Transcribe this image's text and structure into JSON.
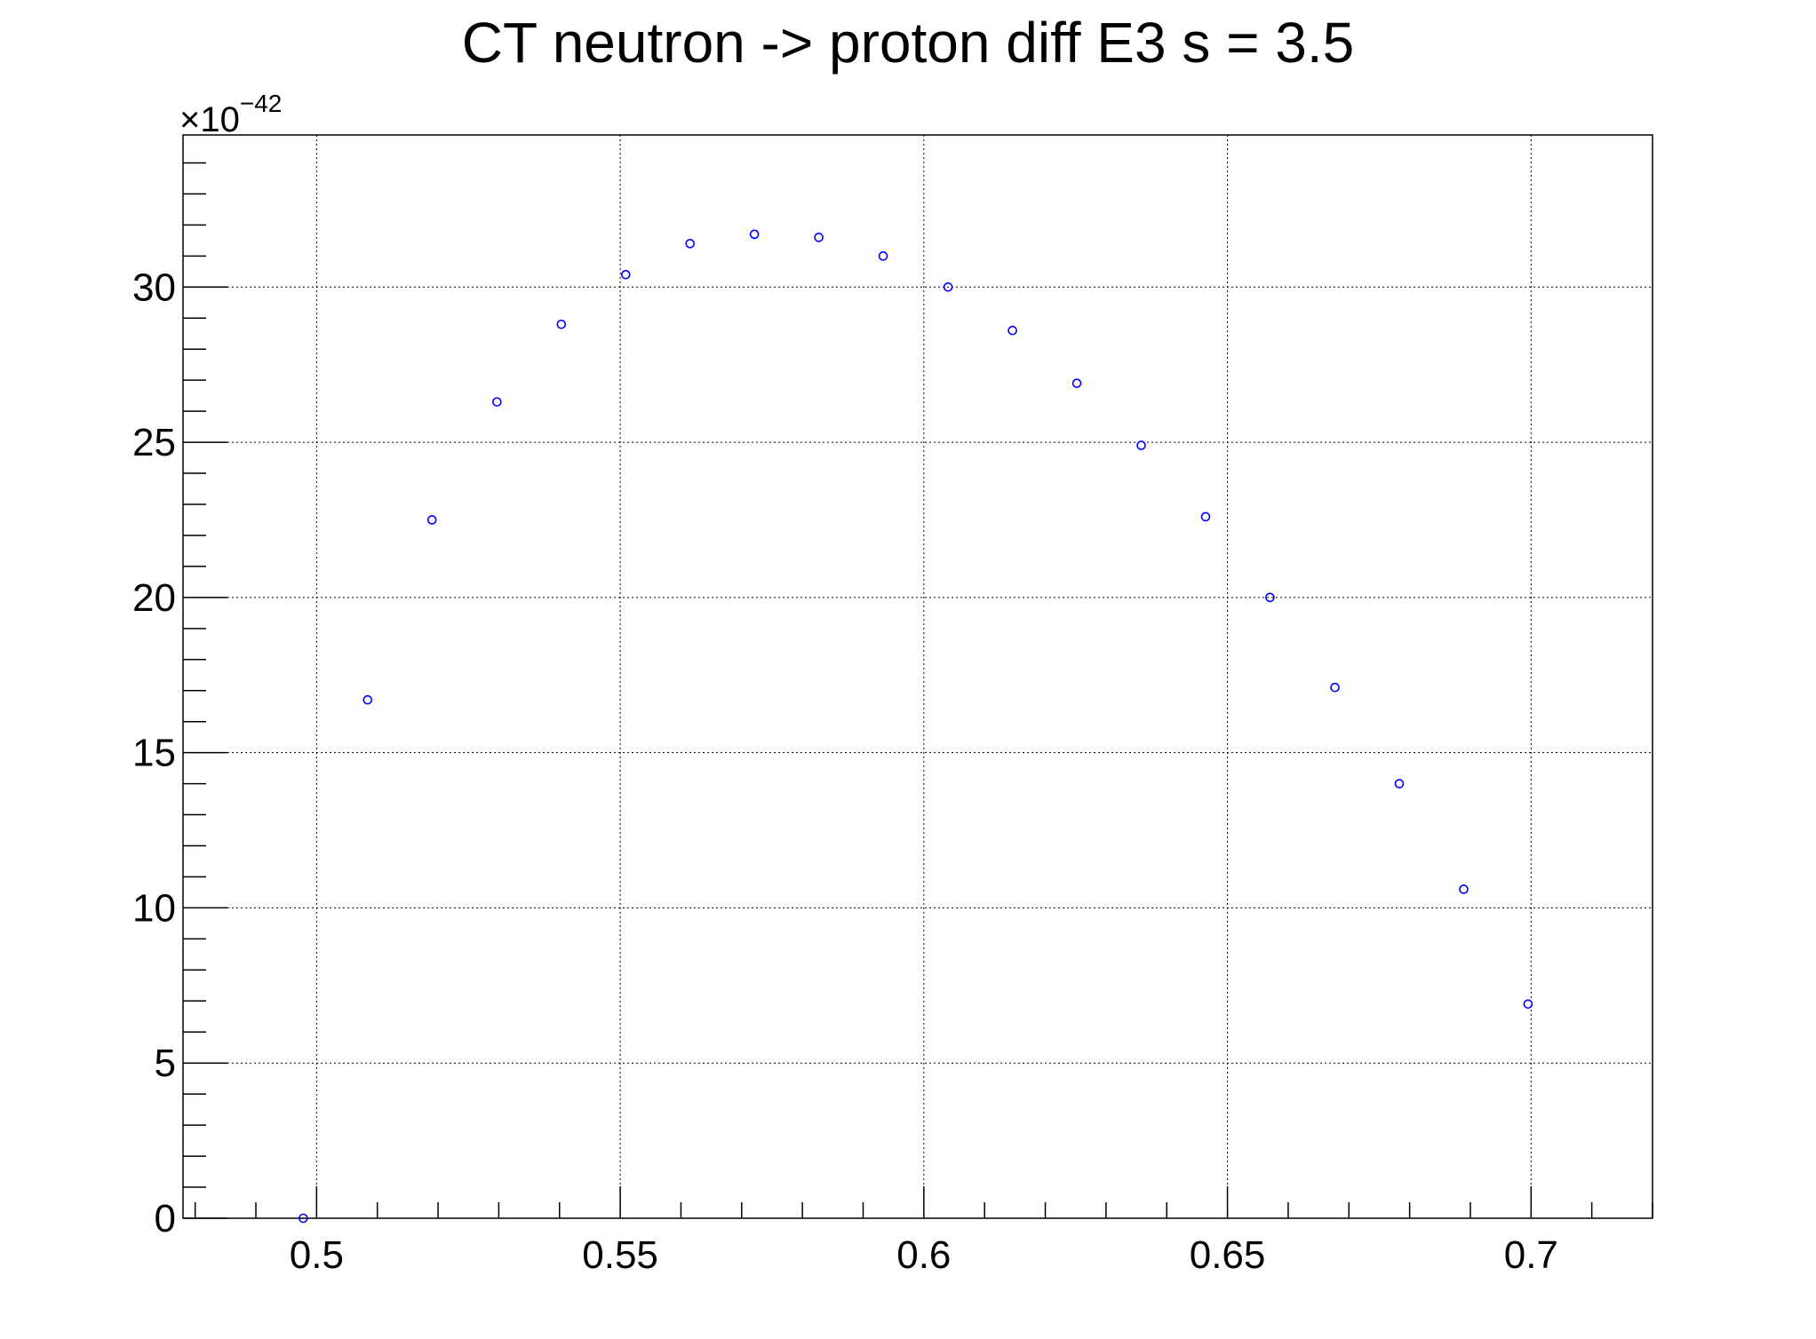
{
  "chart_data": {
    "type": "scatter",
    "title": "CT neutron -> proton diff E3 s = 3.5",
    "xlabel": "",
    "ylabel": "",
    "y_multiplier": "×10",
    "y_multiplier_exponent": "−42",
    "xlim": [
      0.478,
      0.72
    ],
    "ylim": [
      0,
      34.9
    ],
    "x_ticks": [
      {
        "value": 0.5,
        "label": "0.5"
      },
      {
        "value": 0.55,
        "label": "0.55"
      },
      {
        "value": 0.6,
        "label": "0.6"
      },
      {
        "value": 0.65,
        "label": "0.65"
      },
      {
        "value": 0.7,
        "label": "0.7"
      }
    ],
    "y_ticks": [
      {
        "value": 0,
        "label": "0"
      },
      {
        "value": 5,
        "label": "5"
      },
      {
        "value": 10,
        "label": "10"
      },
      {
        "value": 15,
        "label": "15"
      },
      {
        "value": 20,
        "label": "20"
      },
      {
        "value": 25,
        "label": "25"
      },
      {
        "value": 30,
        "label": "30"
      }
    ],
    "grid": true,
    "marker_color": "#0000ff",
    "series": [
      {
        "x": [
          0.4978,
          0.5084,
          0.519,
          0.5297,
          0.5403,
          0.5509,
          0.5615,
          0.5721,
          0.5827,
          0.5933,
          0.604,
          0.6146,
          0.6252,
          0.6358,
          0.6464,
          0.657,
          0.6677,
          0.6783,
          0.6889,
          0.6995
        ],
        "y": [
          0.0,
          16.7,
          22.5,
          26.3,
          28.8,
          30.4,
          31.4,
          31.7,
          31.6,
          31.0,
          30.0,
          28.6,
          26.9,
          24.9,
          22.6,
          20.0,
          17.1,
          14.0,
          10.6,
          6.9
        ]
      }
    ]
  }
}
